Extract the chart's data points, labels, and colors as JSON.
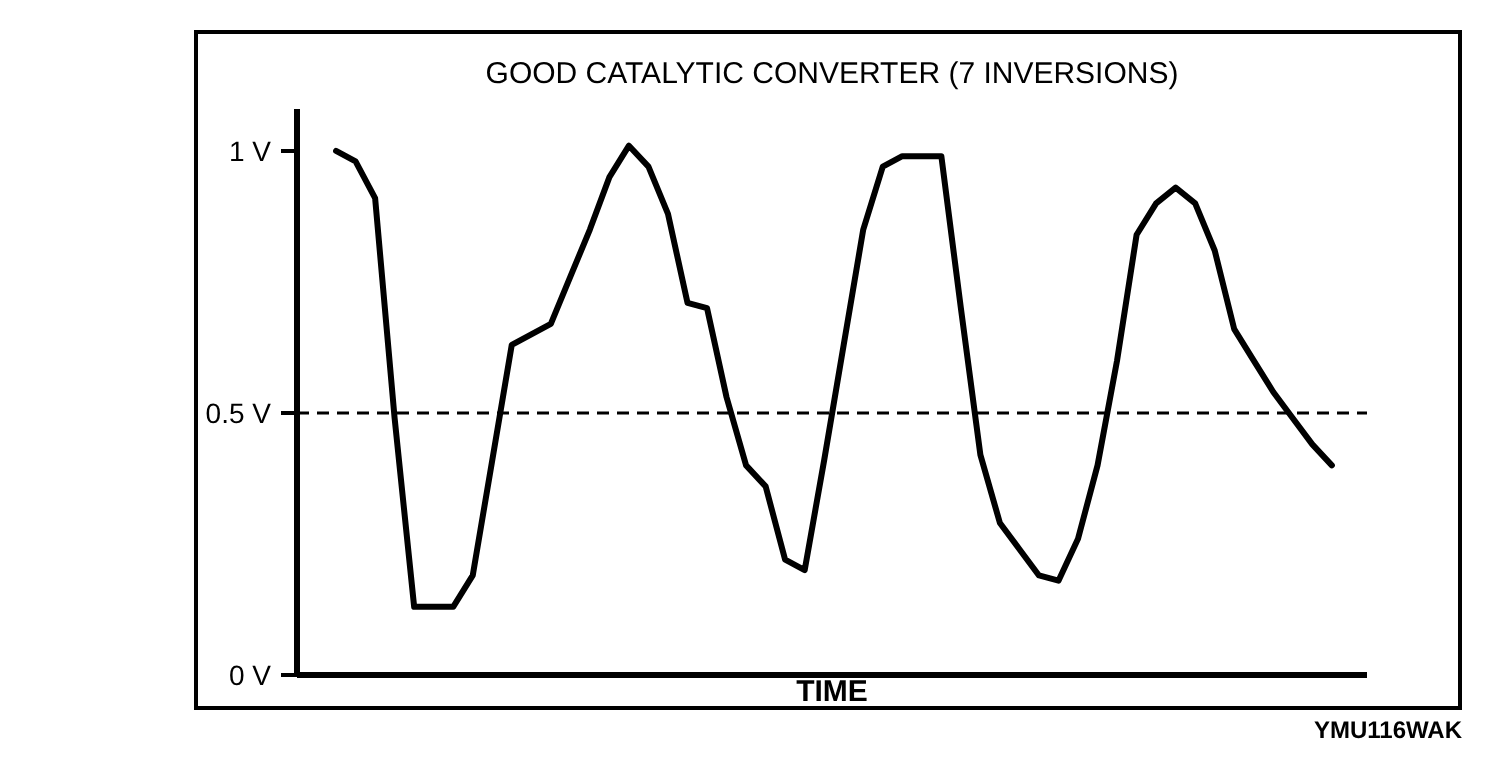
{
  "chart_data": {
    "type": "line",
    "title": "GOOD CATALYTIC CONVERTER (7 INVERSIONS)",
    "xlabel": "TIME",
    "categories": [
      null,
      null,
      null,
      null,
      null,
      null,
      null,
      null,
      null,
      null,
      null,
      null,
      null,
      null,
      null,
      null,
      null,
      null,
      null,
      null,
      null,
      null,
      null,
      null,
      null,
      null,
      null,
      null,
      null,
      null,
      null,
      null,
      null,
      null,
      null,
      null,
      null,
      null,
      null,
      null,
      null,
      null,
      null,
      null,
      null,
      null,
      null,
      null,
      null,
      null,
      null,
      null
    ],
    "series": [
      {
        "color": "#000000",
        "values": [
          1.0,
          0.98,
          0.91,
          0.49,
          0.13,
          0.13,
          0.13,
          0.19,
          0.41,
          0.63,
          0.65,
          0.67,
          0.76,
          0.85,
          0.95,
          1.01,
          0.97,
          0.88,
          0.71,
          0.7,
          0.53,
          0.4,
          0.36,
          0.22,
          0.2,
          0.41,
          0.63,
          0.85,
          0.97,
          0.99,
          0.99,
          0.99,
          0.7,
          0.42,
          0.29,
          0.24,
          0.19,
          0.18,
          0.26,
          0.4,
          0.6,
          0.84,
          0.9,
          0.93,
          0.9,
          0.81,
          0.66,
          0.6,
          0.54,
          0.49,
          0.44,
          0.4
        ]
      }
    ],
    "ylim": [
      0,
      1.08
    ],
    "yticks": [
      {
        "value": 0,
        "label": "0 V"
      },
      {
        "value": 0.5,
        "label": "0.5 V"
      },
      {
        "value": 1,
        "label": "1 V"
      }
    ],
    "ref_lines": [
      {
        "axis": "y",
        "value": 0.5,
        "line_style": "dashed",
        "color": "#000000"
      }
    ],
    "annotations": [
      "YMU116WAK"
    ],
    "tick_labels": "y",
    "line_style": "solid"
  }
}
